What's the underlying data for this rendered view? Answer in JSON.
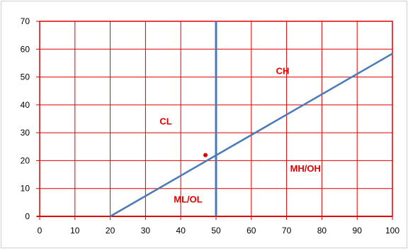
{
  "chart_data": {
    "type": "line",
    "title": "",
    "xlabel": "",
    "ylabel": "",
    "xlim": [
      0,
      100
    ],
    "ylim": [
      0,
      70
    ],
    "x_ticks": [
      0,
      10,
      20,
      30,
      40,
      50,
      60,
      70,
      80,
      90,
      100
    ],
    "y_ticks": [
      0,
      10,
      20,
      30,
      40,
      50,
      60,
      70
    ],
    "grid": true,
    "legend": "none",
    "series": [
      {
        "kind": "line",
        "points": [
          [
            20,
            0
          ],
          [
            100,
            58.4
          ]
        ],
        "color": "#4a7ab8"
      },
      {
        "kind": "line",
        "points": [
          [
            50,
            0
          ],
          [
            50,
            70
          ]
        ],
        "color": "#4a7ab8"
      },
      {
        "kind": "point",
        "points": [
          [
            47,
            22
          ]
        ],
        "color": "#e00000"
      }
    ],
    "annotations": [
      {
        "text": "CL",
        "x": 34,
        "y": 33
      },
      {
        "text": "CH",
        "x": 67,
        "y": 51
      },
      {
        "text": "MH/OH",
        "x": 71,
        "y": 16
      },
      {
        "text": "ML/OL",
        "x": 38,
        "y": 5
      }
    ],
    "colors": {
      "grid": "#e00000",
      "axis": "#e00000",
      "annotation": "#e00000"
    }
  }
}
